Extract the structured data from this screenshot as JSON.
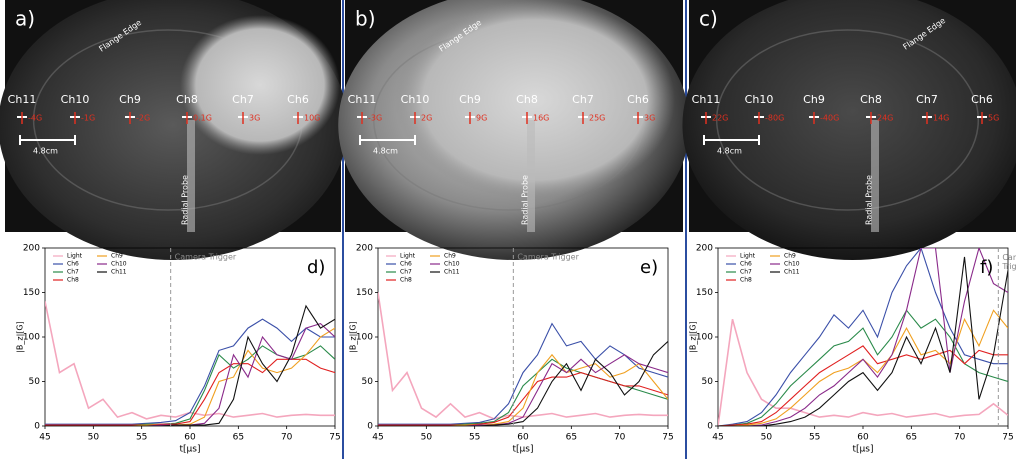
{
  "images": [
    {
      "label": "a)",
      "flange_edge": "Flange Edge",
      "scale": "4.8cm",
      "radial_probe": "Radial Probe",
      "channels": [
        {
          "name": "Ch11",
          "field": "-4G"
        },
        {
          "name": "Ch10",
          "field": "-1G"
        },
        {
          "name": "Ch9",
          "field": "-2G"
        },
        {
          "name": "Ch8",
          "field": "0.1G"
        },
        {
          "name": "Ch7",
          "field": "3G"
        },
        {
          "name": "Ch6",
          "field": "10G"
        }
      ]
    },
    {
      "label": "b)",
      "flange_edge": "Flange Edge",
      "scale": "4.8cm",
      "radial_probe": "Radial Probe",
      "channels": [
        {
          "name": "Ch11",
          "field": "-3G"
        },
        {
          "name": "Ch10",
          "field": "2G"
        },
        {
          "name": "Ch9",
          "field": "9G"
        },
        {
          "name": "Ch8",
          "field": "16G"
        },
        {
          "name": "Ch7",
          "field": "25G"
        },
        {
          "name": "Ch6",
          "field": "3G"
        }
      ]
    },
    {
      "label": "c)",
      "flange_edge": "Flange Edge",
      "scale": "4.8cm",
      "radial_probe": "Radial Probe",
      "channels": [
        {
          "name": "Ch11",
          "field": "22G"
        },
        {
          "name": "Ch10",
          "field": "-80G"
        },
        {
          "name": "Ch9",
          "field": "-40G"
        },
        {
          "name": "Ch8",
          "field": "24G"
        },
        {
          "name": "Ch7",
          "field": "14G"
        },
        {
          "name": "Ch6",
          "field": "5G"
        }
      ]
    }
  ],
  "chart_data": [
    {
      "type": "line",
      "panel_label": "d)",
      "xlabel": "t[μs]",
      "ylabel": "|B_z|[G]",
      "annotation": "Camera Trigger",
      "trigger": 58,
      "xlim": [
        45,
        75
      ],
      "ylim": [
        0,
        200
      ],
      "xticks": [
        45,
        50,
        55,
        60,
        65,
        70,
        75
      ],
      "yticks": [
        0,
        50,
        100,
        150,
        200
      ],
      "x": [
        45,
        46.5,
        48,
        49.5,
        51,
        52.5,
        54,
        55.5,
        57,
        58.5,
        60,
        61.5,
        63,
        64.5,
        66,
        67.5,
        69,
        70.5,
        72,
        73.5,
        75
      ],
      "series": [
        {
          "name": "Light",
          "color": "#f4a6bd",
          "values": [
            140,
            60,
            70,
            20,
            30,
            10,
            15,
            8,
            12,
            10,
            15,
            12,
            14,
            10,
            12,
            14,
            10,
            12,
            13,
            12,
            12
          ]
        },
        {
          "name": "Ch6",
          "color": "#3a4fa8",
          "values": [
            2,
            2,
            2,
            2,
            2,
            2,
            2,
            3,
            4,
            6,
            15,
            45,
            85,
            90,
            110,
            120,
            110,
            95,
            110,
            100,
            100
          ]
        },
        {
          "name": "Ch7",
          "color": "#2a8a4a",
          "values": [
            1,
            1,
            1,
            1,
            1,
            1,
            1,
            2,
            2,
            3,
            8,
            40,
            80,
            65,
            75,
            90,
            80,
            75,
            80,
            90,
            75
          ]
        },
        {
          "name": "Ch8",
          "color": "#e02020",
          "values": [
            1,
            1,
            1,
            1,
            1,
            1,
            1,
            1,
            2,
            2,
            5,
            30,
            60,
            70,
            70,
            60,
            75,
            75,
            75,
            65,
            60
          ]
        },
        {
          "name": "Ch9",
          "color": "#f0a020",
          "values": [
            0,
            0,
            0,
            0,
            0,
            0,
            0,
            1,
            1,
            1,
            2,
            10,
            50,
            55,
            85,
            65,
            60,
            65,
            80,
            100,
            110
          ]
        },
        {
          "name": "Ch10",
          "color": "#8a2a8a",
          "values": [
            0,
            0,
            0,
            0,
            0,
            0,
            0,
            0,
            1,
            1,
            1,
            3,
            20,
            80,
            55,
            100,
            80,
            75,
            110,
            115,
            100
          ]
        },
        {
          "name": "Ch11",
          "color": "#111111",
          "values": [
            0,
            0,
            0,
            0,
            0,
            0,
            0,
            0,
            0,
            1,
            1,
            1,
            3,
            30,
            100,
            70,
            50,
            80,
            135,
            110,
            120
          ]
        }
      ]
    },
    {
      "type": "line",
      "panel_label": "e)",
      "xlabel": "t[μs]",
      "ylabel": "|B_z|[G]",
      "annotation": "Camera Trigger",
      "trigger": 59,
      "xlim": [
        45,
        75
      ],
      "ylim": [
        0,
        200
      ],
      "xticks": [
        45,
        50,
        55,
        60,
        65,
        70,
        75
      ],
      "yticks": [
        0,
        50,
        100,
        150,
        200
      ],
      "x": [
        45,
        46.5,
        48,
        49.5,
        51,
        52.5,
        54,
        55.5,
        57,
        58.5,
        60,
        61.5,
        63,
        64.5,
        66,
        67.5,
        69,
        70.5,
        72,
        73.5,
        75
      ],
      "series": [
        {
          "name": "Light",
          "color": "#f4a6bd",
          "values": [
            150,
            40,
            60,
            20,
            10,
            25,
            10,
            15,
            8,
            12,
            10,
            12,
            14,
            10,
            12,
            14,
            10,
            12,
            13,
            12,
            12
          ]
        },
        {
          "name": "Ch6",
          "color": "#3a4fa8",
          "values": [
            2,
            2,
            2,
            2,
            2,
            2,
            3,
            4,
            8,
            25,
            60,
            80,
            115,
            90,
            95,
            75,
            90,
            80,
            65,
            60,
            55
          ]
        },
        {
          "name": "Ch7",
          "color": "#2a8a4a",
          "values": [
            1,
            1,
            1,
            1,
            1,
            1,
            2,
            3,
            5,
            15,
            45,
            60,
            75,
            65,
            60,
            55,
            50,
            45,
            40,
            35,
            30
          ]
        },
        {
          "name": "Ch8",
          "color": "#e02020",
          "values": [
            1,
            1,
            1,
            1,
            1,
            1,
            1,
            2,
            4,
            10,
            30,
            50,
            55,
            55,
            60,
            55,
            50,
            45,
            45,
            40,
            35
          ]
        },
        {
          "name": "Ch9",
          "color": "#f0a020",
          "values": [
            0,
            0,
            0,
            0,
            0,
            0,
            1,
            1,
            2,
            5,
            20,
            60,
            80,
            60,
            65,
            70,
            55,
            60,
            70,
            50,
            30
          ]
        },
        {
          "name": "Ch10",
          "color": "#8a2a8a",
          "values": [
            0,
            0,
            0,
            0,
            0,
            0,
            0,
            1,
            1,
            3,
            10,
            40,
            70,
            60,
            75,
            60,
            70,
            80,
            70,
            65,
            60
          ]
        },
        {
          "name": "Ch11",
          "color": "#111111",
          "values": [
            0,
            0,
            0,
            0,
            0,
            0,
            0,
            0,
            1,
            2,
            5,
            20,
            50,
            70,
            40,
            75,
            60,
            35,
            50,
            80,
            95
          ]
        }
      ]
    },
    {
      "type": "line",
      "panel_label": "f)",
      "xlabel": "t[μs]",
      "ylabel": "|B_z|[G]",
      "annotation": "Camera Trigger",
      "trigger": 74,
      "xlim": [
        45,
        75
      ],
      "ylim": [
        0,
        200
      ],
      "xticks": [
        45,
        50,
        55,
        60,
        65,
        70,
        75
      ],
      "yticks": [
        0,
        50,
        100,
        150,
        200
      ],
      "x": [
        45,
        46.5,
        48,
        49.5,
        51,
        52.5,
        54,
        55.5,
        57,
        58.5,
        60,
        61.5,
        63,
        64.5,
        66,
        67.5,
        69,
        70.5,
        72,
        73.5,
        75
      ],
      "series": [
        {
          "name": "Light",
          "color": "#f4a6bd",
          "values": [
            0,
            120,
            60,
            30,
            20,
            20,
            15,
            10,
            12,
            10,
            15,
            12,
            14,
            10,
            12,
            14,
            10,
            12,
            13,
            25,
            12
          ]
        },
        {
          "name": "Ch6",
          "color": "#3a4fa8",
          "values": [
            0,
            2,
            5,
            15,
            35,
            60,
            80,
            100,
            125,
            110,
            130,
            100,
            150,
            180,
            200,
            150,
            110,
            80,
            75,
            70,
            70
          ]
        },
        {
          "name": "Ch7",
          "color": "#2a8a4a",
          "values": [
            0,
            1,
            3,
            10,
            25,
            45,
            60,
            75,
            90,
            95,
            110,
            80,
            100,
            130,
            110,
            120,
            100,
            70,
            60,
            55,
            50
          ]
        },
        {
          "name": "Ch8",
          "color": "#e02020",
          "values": [
            0,
            1,
            2,
            5,
            15,
            30,
            45,
            60,
            70,
            80,
            90,
            70,
            75,
            80,
            75,
            80,
            85,
            70,
            85,
            80,
            80
          ]
        },
        {
          "name": "Ch9",
          "color": "#f0a020",
          "values": [
            0,
            0,
            1,
            3,
            8,
            20,
            35,
            50,
            60,
            65,
            75,
            60,
            80,
            110,
            80,
            85,
            70,
            120,
            90,
            130,
            110
          ]
        },
        {
          "name": "Ch10",
          "color": "#8a2a8a",
          "values": [
            0,
            0,
            0,
            1,
            5,
            10,
            20,
            35,
            45,
            60,
            75,
            55,
            80,
            130,
            200,
            200,
            60,
            140,
            200,
            160,
            150
          ]
        },
        {
          "name": "Ch11",
          "color": "#111111",
          "values": [
            0,
            0,
            0,
            0,
            2,
            5,
            10,
            20,
            35,
            50,
            60,
            40,
            60,
            100,
            70,
            110,
            60,
            190,
            30,
            80,
            175
          ]
        }
      ]
    }
  ]
}
